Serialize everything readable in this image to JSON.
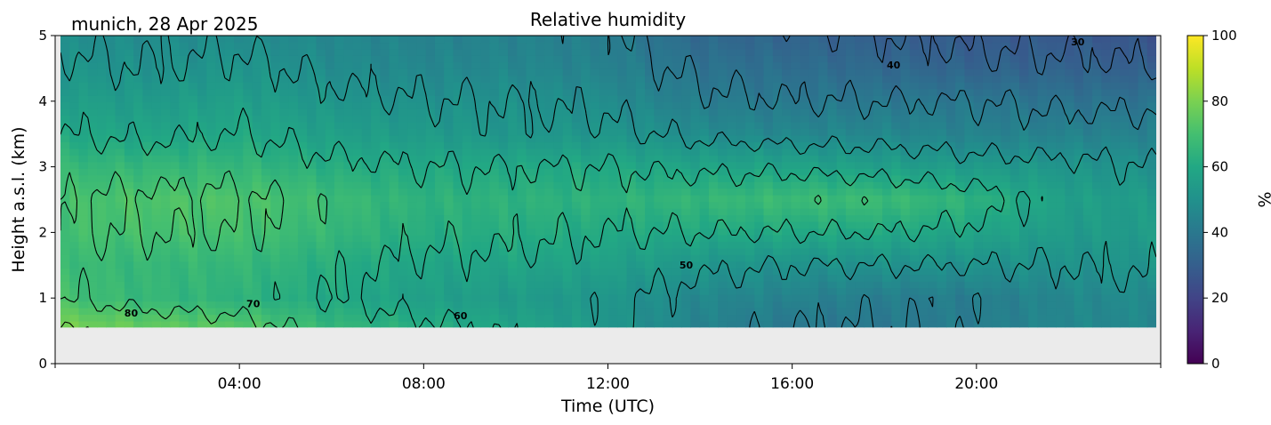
{
  "chart_data": {
    "type": "heatmap",
    "title": "Relative humidity",
    "subtitle": "munich, 28 Apr 2025",
    "xlabel": "Time (UTC)",
    "ylabel": "Height a.s.l. (km)",
    "xlim_hours": [
      0,
      24
    ],
    "ylim_km": [
      0,
      5
    ],
    "x_ticks": [
      {
        "value": 4,
        "label": "04:00"
      },
      {
        "value": 8,
        "label": "08:00"
      },
      {
        "value": 12,
        "label": "12:00"
      },
      {
        "value": 16,
        "label": "16:00"
      },
      {
        "value": 20,
        "label": "20:00"
      }
    ],
    "y_ticks": [
      {
        "value": 0,
        "label": "0"
      },
      {
        "value": 1,
        "label": "1"
      },
      {
        "value": 2,
        "label": "2"
      },
      {
        "value": 3,
        "label": "3"
      },
      {
        "value": 4,
        "label": "4"
      },
      {
        "value": 5,
        "label": "5"
      }
    ],
    "data_bottom_km": 0.55,
    "no_data_color": "#ebebeb",
    "colormap": "viridis",
    "colorbar": {
      "label": "%",
      "range": [
        0,
        100
      ],
      "ticks": [
        {
          "value": 0,
          "label": "0"
        },
        {
          "value": 20,
          "label": "20"
        },
        {
          "value": 40,
          "label": "40"
        },
        {
          "value": 60,
          "label": "60"
        },
        {
          "value": 80,
          "label": "80"
        },
        {
          "value": 100,
          "label": "100"
        }
      ]
    },
    "times_hours": [
      0,
      2,
      4,
      6,
      8,
      10,
      12,
      14,
      16,
      18,
      20,
      22,
      24
    ],
    "heights_km": [
      0.55,
      1.0,
      1.5,
      2.0,
      2.5,
      3.0,
      3.5,
      4.0,
      4.5,
      5.0
    ],
    "rh_percent": [
      [
        80,
        76,
        74,
        66,
        62,
        58,
        52,
        44,
        40,
        40,
        42,
        46,
        46
      ],
      [
        70,
        66,
        64,
        60,
        56,
        54,
        52,
        46,
        44,
        42,
        42,
        46,
        48
      ],
      [
        68,
        66,
        66,
        62,
        58,
        58,
        56,
        52,
        50,
        50,
        50,
        50,
        52
      ],
      [
        70,
        70,
        70,
        66,
        62,
        62,
        60,
        60,
        60,
        60,
        58,
        54,
        54
      ],
      [
        70,
        72,
        72,
        68,
        64,
        64,
        64,
        66,
        68,
        68,
        64,
        56,
        54
      ],
      [
        66,
        66,
        66,
        62,
        60,
        60,
        60,
        58,
        58,
        56,
        54,
        52,
        50
      ],
      [
        60,
        58,
        60,
        56,
        54,
        52,
        52,
        48,
        46,
        46,
        44,
        44,
        44
      ],
      [
        56,
        54,
        56,
        52,
        50,
        50,
        48,
        42,
        40,
        40,
        40,
        38,
        38
      ],
      [
        52,
        50,
        52,
        48,
        46,
        46,
        44,
        38,
        36,
        34,
        32,
        32,
        30
      ],
      [
        48,
        48,
        48,
        46,
        44,
        44,
        42,
        34,
        32,
        30,
        28,
        28,
        26
      ]
    ],
    "contour_labels": [
      {
        "text": "80",
        "t": 1.65,
        "h": 0.72
      },
      {
        "text": "70",
        "t": 4.3,
        "h": 0.86
      },
      {
        "text": "60",
        "t": 8.8,
        "h": 0.68
      },
      {
        "text": "50",
        "t": 13.7,
        "h": 1.45
      },
      {
        "text": "40",
        "t": 18.2,
        "h": 4.5
      },
      {
        "text": "30",
        "t": 22.2,
        "h": 4.85
      }
    ]
  }
}
